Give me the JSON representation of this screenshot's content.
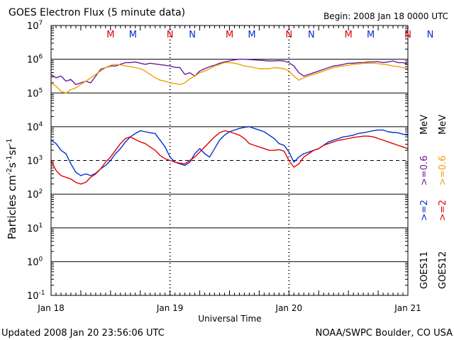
{
  "chart_data": {
    "type": "line",
    "title": "GOES Electron Flux (5 minute data)",
    "begin_label": "Begin: 2008 Jan 18 0000 UTC",
    "xlabel": "Universal Time",
    "ylabel_parts": {
      "main": "Particles cm",
      "e1": "-2",
      "mid1": "s",
      "e2": "-1",
      "mid2": "sr",
      "e3": "-1"
    },
    "footer_left": "Updated 2008 Jan 20 23:56:06 UTC",
    "footer_right": "NOAA/SWPC Boulder, CO USA",
    "xlim": [
      0,
      72
    ],
    "x_ticks": [
      {
        "x": 0,
        "label": "Jan 18"
      },
      {
        "x": 24,
        "label": "Jan 19"
      },
      {
        "x": 48,
        "label": "Jan 20"
      },
      {
        "x": 72,
        "label": "Jan 21"
      }
    ],
    "ylim_log10": [
      -1,
      7
    ],
    "y_ticks": [
      {
        "exp": 7,
        "base": "10",
        "sup": "7"
      },
      {
        "exp": 6,
        "base": "10",
        "sup": "6"
      },
      {
        "exp": 5,
        "base": "10",
        "sup": "5"
      },
      {
        "exp": 4,
        "base": "10",
        "sup": "4"
      },
      {
        "exp": 3,
        "base": "10",
        "sup": "3"
      },
      {
        "exp": 2,
        "base": "10",
        "sup": "2"
      },
      {
        "exp": 1,
        "base": "10",
        "sup": "1"
      },
      {
        "exp": 0,
        "base": "10",
        "sup": "0"
      },
      {
        "exp": -1,
        "base": "10",
        "sup": "-1"
      }
    ],
    "alert_threshold_log10": 3,
    "mn_markers": [
      {
        "x": 8.0,
        "label": "M",
        "color": "#e00000"
      },
      {
        "x": 12.5,
        "label": "M",
        "color": "#0030d0"
      },
      {
        "x": 20.0,
        "label": "N",
        "color": "#e00000"
      },
      {
        "x": 24.5,
        "label": "N",
        "color": "#0030d0"
      },
      {
        "x": 32.0,
        "label": "M",
        "color": "#e00000"
      },
      {
        "x": 36.5,
        "label": "M",
        "color": "#0030d0"
      },
      {
        "x": 44.0,
        "label": "N",
        "color": "#e00000"
      },
      {
        "x": 48.5,
        "label": "N",
        "color": "#0030d0"
      },
      {
        "x": 56.0,
        "label": "M",
        "color": "#e00000"
      },
      {
        "x": 60.5,
        "label": "M",
        "color": "#0030d0"
      },
      {
        "x": 68.0,
        "label": "N",
        "color": "#e00000"
      },
      {
        "x": 72.5,
        "label": "N",
        "color": "#0030d0"
      }
    ],
    "legend": [
      {
        "label": ">=2",
        "color": "#0030d0"
      },
      {
        "label": ">=0.6",
        "color": "#6a1b9a"
      },
      {
        "label": "MeV",
        "color": "#000000"
      },
      {
        "label": ">=2",
        "color": "#e00000"
      },
      {
        "label": ">=0.6",
        "color": "#f0a000"
      },
      {
        "label": "MeV",
        "color": "#000000"
      },
      {
        "label": "GOES11",
        "color": "#000000"
      },
      {
        "label": "GOES12",
        "color": "#000000"
      }
    ],
    "series": [
      {
        "name": "GOES11 >=0.6 MeV",
        "color": "#6a1b9a",
        "x": [
          0,
          1,
          2,
          3,
          4,
          5,
          6,
          7,
          8,
          9,
          10,
          11,
          12,
          13,
          14,
          15,
          16,
          17,
          18,
          19,
          20,
          21,
          22,
          23,
          24,
          25,
          26,
          27,
          28,
          29,
          30,
          31,
          32,
          33,
          34,
          35,
          36,
          37,
          38,
          39,
          40,
          41,
          42,
          43,
          44,
          45,
          46,
          47,
          48,
          49,
          50,
          51,
          52,
          53,
          54,
          55,
          56,
          57,
          58,
          59,
          60,
          61,
          62,
          63,
          64,
          65,
          66,
          67,
          68,
          69,
          70,
          71,
          72
        ],
        "log10": [
          5.55,
          5.45,
          5.5,
          5.35,
          5.4,
          5.25,
          5.3,
          5.35,
          5.3,
          5.5,
          5.7,
          5.75,
          5.8,
          5.8,
          5.85,
          5.9,
          5.9,
          5.92,
          5.88,
          5.85,
          5.88,
          5.86,
          5.84,
          5.82,
          5.8,
          5.76,
          5.75,
          5.55,
          5.6,
          5.5,
          5.65,
          5.72,
          5.78,
          5.82,
          5.88,
          5.92,
          5.95,
          5.98,
          6.0,
          6.0,
          5.99,
          5.98,
          5.97,
          5.96,
          5.95,
          5.95,
          5.96,
          5.95,
          5.9,
          5.8,
          5.6,
          5.5,
          5.55,
          5.6,
          5.65,
          5.7,
          5.75,
          5.8,
          5.82,
          5.85,
          5.88,
          5.88,
          5.9,
          5.9,
          5.92,
          5.92,
          5.93,
          5.9,
          5.92,
          5.95,
          5.9,
          5.9,
          5.85
        ]
      },
      {
        "name": "GOES12 >=0.6 MeV",
        "color": "#f0a000",
        "x": [
          0,
          1,
          2,
          3,
          4,
          5,
          6,
          7,
          8,
          9,
          10,
          11,
          12,
          13,
          14,
          15,
          16,
          17,
          18,
          19,
          20,
          21,
          22,
          23,
          24,
          25,
          26,
          27,
          28,
          29,
          30,
          31,
          32,
          33,
          34,
          35,
          36,
          37,
          38,
          39,
          40,
          41,
          42,
          43,
          44,
          45,
          46,
          47,
          48,
          49,
          50,
          51,
          52,
          53,
          54,
          55,
          56,
          57,
          58,
          59,
          60,
          61,
          62,
          63,
          64,
          65,
          66,
          67,
          68,
          69,
          70,
          71,
          72
        ],
        "log10": [
          5.3,
          5.2,
          5.05,
          5.0,
          5.1,
          5.15,
          5.25,
          5.35,
          5.45,
          5.55,
          5.65,
          5.75,
          5.82,
          5.85,
          5.83,
          5.8,
          5.78,
          5.75,
          5.72,
          5.65,
          5.55,
          5.45,
          5.38,
          5.35,
          5.3,
          5.28,
          5.25,
          5.3,
          5.42,
          5.5,
          5.6,
          5.65,
          5.72,
          5.8,
          5.85,
          5.9,
          5.9,
          5.88,
          5.85,
          5.8,
          5.78,
          5.75,
          5.72,
          5.72,
          5.72,
          5.75,
          5.74,
          5.72,
          5.65,
          5.5,
          5.38,
          5.45,
          5.5,
          5.55,
          5.6,
          5.65,
          5.7,
          5.75,
          5.78,
          5.8,
          5.82,
          5.85,
          5.86,
          5.88,
          5.88,
          5.88,
          5.87,
          5.85,
          5.83,
          5.8,
          5.78,
          5.75,
          5.72
        ]
      },
      {
        "name": "GOES11 >=2 MeV",
        "color": "#0030d0",
        "x": [
          0,
          1,
          2,
          3,
          4,
          5,
          6,
          7,
          8,
          9,
          10,
          11,
          12,
          13,
          14,
          15,
          16,
          17,
          18,
          19,
          20,
          21,
          22,
          23,
          24,
          25,
          26,
          27,
          28,
          29,
          30,
          31,
          32,
          33,
          34,
          35,
          36,
          37,
          38,
          39,
          40,
          41,
          42,
          43,
          44,
          45,
          46,
          47,
          48,
          49,
          50,
          51,
          52,
          53,
          54,
          55,
          56,
          57,
          58,
          59,
          60,
          61,
          62,
          63,
          64,
          65,
          66,
          67,
          68,
          69,
          70,
          71,
          72
        ],
        "log10": [
          3.6,
          3.5,
          3.3,
          3.2,
          2.9,
          2.65,
          2.55,
          2.6,
          2.55,
          2.62,
          2.75,
          2.85,
          3.0,
          3.2,
          3.35,
          3.55,
          3.7,
          3.8,
          3.88,
          3.85,
          3.82,
          3.8,
          3.6,
          3.4,
          3.1,
          2.95,
          2.9,
          2.85,
          2.95,
          3.2,
          3.35,
          3.2,
          3.1,
          3.35,
          3.6,
          3.75,
          3.85,
          3.9,
          3.95,
          3.98,
          4.0,
          3.95,
          3.9,
          3.85,
          3.75,
          3.65,
          3.5,
          3.45,
          3.25,
          2.95,
          3.1,
          3.2,
          3.25,
          3.3,
          3.35,
          3.45,
          3.55,
          3.6,
          3.65,
          3.7,
          3.72,
          3.75,
          3.8,
          3.82,
          3.85,
          3.88,
          3.9,
          3.9,
          3.85,
          3.83,
          3.82,
          3.78,
          3.75
        ]
      },
      {
        "name": "GOES12 >=2 MeV",
        "color": "#e00000",
        "x": [
          0,
          1,
          2,
          3,
          4,
          5,
          6,
          7,
          8,
          9,
          10,
          11,
          12,
          13,
          14,
          15,
          16,
          17,
          18,
          19,
          20,
          21,
          22,
          23,
          24,
          25,
          26,
          27,
          28,
          29,
          30,
          31,
          32,
          33,
          34,
          35,
          36,
          37,
          38,
          39,
          40,
          41,
          42,
          43,
          44,
          45,
          46,
          47,
          48,
          49,
          50,
          51,
          52,
          53,
          54,
          55,
          56,
          57,
          58,
          59,
          60,
          61,
          62,
          63,
          64,
          65,
          66,
          67,
          68,
          69,
          70,
          71,
          72
        ],
        "log10": [
          3.0,
          2.7,
          2.55,
          2.5,
          2.45,
          2.35,
          2.3,
          2.35,
          2.5,
          2.6,
          2.75,
          2.95,
          3.1,
          3.3,
          3.5,
          3.65,
          3.7,
          3.62,
          3.55,
          3.5,
          3.4,
          3.3,
          3.15,
          3.05,
          3.0,
          2.95,
          2.92,
          2.9,
          3.0,
          3.1,
          3.25,
          3.4,
          3.55,
          3.7,
          3.82,
          3.88,
          3.85,
          3.8,
          3.75,
          3.65,
          3.5,
          3.45,
          3.4,
          3.35,
          3.3,
          3.3,
          3.32,
          3.28,
          3.0,
          2.8,
          2.9,
          3.1,
          3.2,
          3.3,
          3.35,
          3.45,
          3.5,
          3.55,
          3.6,
          3.62,
          3.65,
          3.68,
          3.7,
          3.72,
          3.72,
          3.7,
          3.65,
          3.6,
          3.55,
          3.5,
          3.45,
          3.4,
          3.35
        ]
      }
    ]
  }
}
